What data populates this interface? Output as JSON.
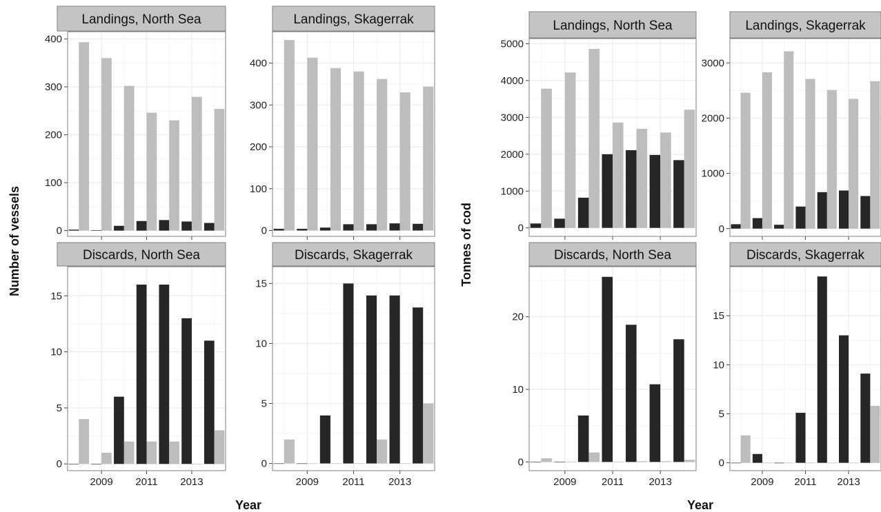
{
  "colors": {
    "dark": "#262626",
    "light": "#bdbdbd",
    "strip_fill": "#c4c4c4",
    "frame": "#7f7f7f",
    "grid": "#ebebeb"
  },
  "axes": {
    "left_ylabel": "Number of vessels",
    "right_ylabel": "Tonnes of cod",
    "left_xlabel": "Year",
    "right_xlabel": "Year"
  },
  "chart_data": [
    {
      "type": "bar",
      "title": "Landings, North Sea",
      "group": "Number of vessels",
      "x": [
        2008,
        2009,
        2010,
        2011,
        2012,
        2013,
        2014
      ],
      "xticks": [
        2009,
        2011,
        2013
      ],
      "series": [
        {
          "values": [
            2,
            1,
            10,
            20,
            22,
            19,
            16
          ]
        },
        {
          "values": [
            393,
            360,
            302,
            246,
            230,
            279,
            254
          ]
        }
      ],
      "ylim": [
        -12,
        415
      ],
      "yticks": [
        0,
        100,
        200,
        300,
        400
      ]
    },
    {
      "type": "bar",
      "title": "Landings, Skagerrak",
      "group": "Number of vessels",
      "x": [
        2008,
        2009,
        2010,
        2011,
        2012,
        2013,
        2014
      ],
      "xticks": [
        2009,
        2011,
        2013
      ],
      "series": [
        {
          "values": [
            4,
            4,
            7,
            15,
            15,
            17,
            16
          ]
        },
        {
          "values": [
            455,
            413,
            388,
            380,
            362,
            330,
            344
          ]
        }
      ],
      "ylim": [
        -14,
        475
      ],
      "yticks": [
        0,
        100,
        200,
        300,
        400
      ]
    },
    {
      "type": "bar",
      "title": "Discards, North Sea",
      "group": "Number of vessels",
      "x": [
        2008,
        2009,
        2010,
        2011,
        2012,
        2013,
        2014
      ],
      "xticks": [
        2009,
        2011,
        2013
      ],
      "series": [
        {
          "values": [
            0,
            0,
            6,
            16,
            16,
            13,
            11
          ]
        },
        {
          "values": [
            4,
            1,
            2,
            2,
            2,
            0,
            3
          ]
        }
      ],
      "ylim": [
        -0.6,
        17.6
      ],
      "yticks": [
        0,
        5,
        10,
        15
      ]
    },
    {
      "type": "bar",
      "title": "Discards, Skagerrak",
      "group": "Number of vessels",
      "x": [
        2008,
        2009,
        2010,
        2011,
        2012,
        2013,
        2014
      ],
      "xticks": [
        2009,
        2011,
        2013
      ],
      "series": [
        {
          "values": [
            0,
            0,
            4,
            15,
            14,
            14,
            13
          ]
        },
        {
          "values": [
            2,
            0,
            0,
            0,
            2,
            0,
            5
          ]
        }
      ],
      "ylim": [
        -0.6,
        16.4
      ],
      "yticks": [
        0,
        5,
        10,
        15
      ]
    },
    {
      "type": "bar",
      "title": "Landings, North Sea",
      "group": "Tonnes of cod",
      "x": [
        2008,
        2009,
        2010,
        2011,
        2012,
        2013,
        2014
      ],
      "xticks": [
        2009,
        2011,
        2013
      ],
      "series": [
        {
          "values": [
            120,
            250,
            820,
            2000,
            2110,
            1980,
            1840
          ]
        },
        {
          "values": [
            3780,
            4220,
            4860,
            2860,
            2690,
            2590,
            3210
          ]
        }
      ],
      "ylim": [
        -230,
        5140
      ],
      "yticks": [
        0,
        1000,
        2000,
        3000,
        4000,
        5000
      ]
    },
    {
      "type": "bar",
      "title": "Landings, Skagerrak",
      "group": "Tonnes of cod",
      "x": [
        2008,
        2009,
        2010,
        2011,
        2012,
        2013,
        2014
      ],
      "xticks": [
        2009,
        2011,
        2013
      ],
      "series": [
        {
          "values": [
            80,
            190,
            70,
            400,
            660,
            690,
            590
          ]
        },
        {
          "values": [
            2460,
            2830,
            3210,
            2710,
            2510,
            2350,
            2670
          ]
        }
      ],
      "ylim": [
        -140,
        3440
      ],
      "yticks": [
        0,
        1000,
        2000,
        3000
      ]
    },
    {
      "type": "bar",
      "title": "Discards, North Sea",
      "group": "Tonnes of cod",
      "x": [
        2008,
        2009,
        2010,
        2011,
        2012,
        2013,
        2014
      ],
      "xticks": [
        2009,
        2011,
        2013
      ],
      "series": [
        {
          "values": [
            0,
            0,
            6.4,
            25.5,
            18.9,
            10.7,
            16.9
          ]
        },
        {
          "values": [
            0.5,
            0,
            1.3,
            0,
            0.1,
            0.1,
            0.3
          ]
        }
      ],
      "ylim": [
        -1.2,
        26.9
      ],
      "yticks": [
        0,
        10,
        20
      ]
    },
    {
      "type": "bar",
      "title": "Discards, Skagerrak",
      "group": "Tonnes of cod",
      "x": [
        2008,
        2009,
        2010,
        2011,
        2012,
        2013,
        2014
      ],
      "xticks": [
        2009,
        2011,
        2013
      ],
      "series": [
        {
          "values": [
            0,
            0.9,
            0,
            5.1,
            19,
            13,
            9.1
          ]
        },
        {
          "values": [
            2.8,
            0,
            0,
            0,
            0,
            0,
            5.8
          ]
        }
      ],
      "ylim": [
        -0.8,
        20.0
      ],
      "yticks": [
        0,
        5,
        10,
        15
      ]
    }
  ]
}
